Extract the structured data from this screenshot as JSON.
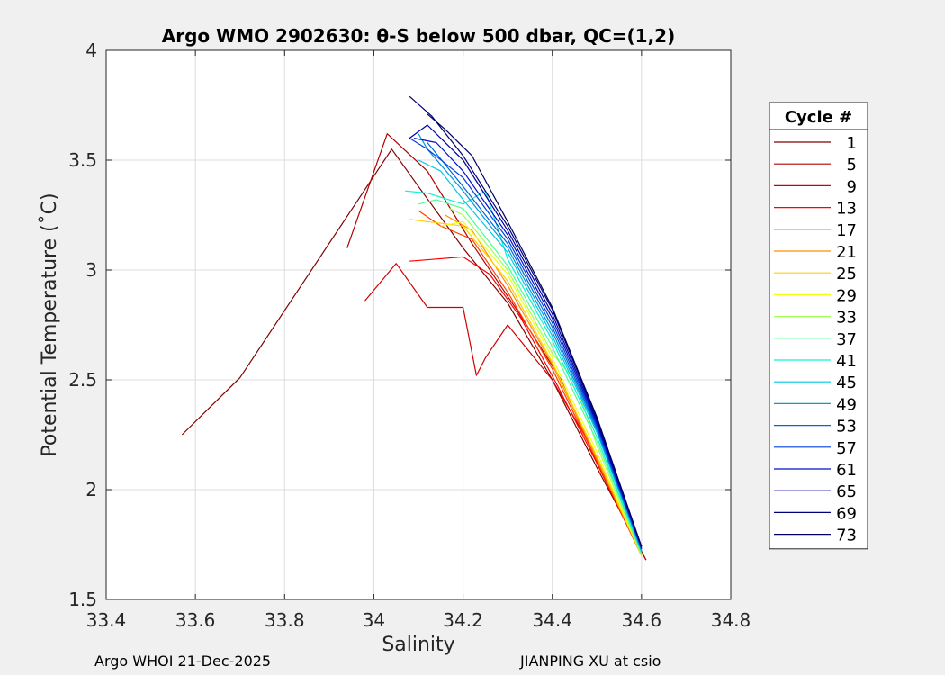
{
  "chart_data": {
    "type": "line",
    "title": "Argo WMO 2902630: θ-S below 500 dbar,  QC=(1,2)",
    "xlabel": "Salinity",
    "ylabel": "Potential Temperature (˚C)",
    "xlim": [
      33.4,
      34.8
    ],
    "ylim": [
      1.5,
      4.0
    ],
    "xticks": [
      "33.4",
      "33.6",
      "33.8",
      "34",
      "34.2",
      "34.4",
      "34.6",
      "34.8"
    ],
    "yticks": [
      "1.5",
      "2",
      "2.5",
      "3",
      "3.5",
      "4"
    ],
    "grid": true,
    "legend_title": "Cycle #",
    "legend_position": "right",
    "series": [
      {
        "name": "1",
        "color": "#800000",
        "x": [
          34.61,
          34.5,
          34.4,
          34.3,
          34.2,
          34.1,
          34.04,
          33.7,
          33.57
        ],
        "y": [
          1.68,
          2.1,
          2.5,
          2.85,
          3.1,
          3.38,
          3.55,
          2.51,
          2.25
        ]
      },
      {
        "name": "5",
        "color": "#b00000",
        "x": [
          34.61,
          34.5,
          34.42,
          34.32,
          34.22,
          34.12,
          34.03,
          33.94
        ],
        "y": [
          1.68,
          2.12,
          2.5,
          2.82,
          3.12,
          3.45,
          3.62,
          3.1
        ]
      },
      {
        "name": "9",
        "color": "#d00000",
        "x": [
          34.6,
          34.5,
          34.4,
          34.3,
          34.25,
          34.23,
          34.2,
          34.12,
          34.05,
          33.98
        ],
        "y": [
          1.7,
          2.15,
          2.5,
          2.75,
          2.6,
          2.52,
          2.83,
          2.83,
          3.03,
          2.86
        ]
      },
      {
        "name": "13",
        "color": "#ff0000",
        "x": [
          34.6,
          34.5,
          34.41,
          34.33,
          34.26,
          34.2,
          34.14,
          34.08
        ],
        "y": [
          1.7,
          2.12,
          2.48,
          2.78,
          2.98,
          3.06,
          3.05,
          3.04
        ]
      },
      {
        "name": "17",
        "color": "#ff4000",
        "x": [
          34.6,
          34.5,
          34.4,
          34.3,
          34.22,
          34.15,
          34.1
        ],
        "y": [
          1.7,
          2.13,
          2.55,
          2.9,
          3.14,
          3.2,
          3.27
        ]
      },
      {
        "name": "21",
        "color": "#ff9000",
        "x": [
          34.6,
          34.5,
          34.4,
          34.3,
          34.22,
          34.16
        ],
        "y": [
          1.7,
          2.14,
          2.57,
          2.93,
          3.18,
          3.25
        ]
      },
      {
        "name": "25",
        "color": "#ffd000",
        "x": [
          34.6,
          34.5,
          34.4,
          34.3,
          34.2,
          34.12,
          34.08
        ],
        "y": [
          1.7,
          2.15,
          2.58,
          2.95,
          3.2,
          3.22,
          3.23
        ]
      },
      {
        "name": "29",
        "color": "#f0ff10",
        "x": [
          34.6,
          34.5,
          34.4,
          34.3,
          34.2,
          34.15
        ],
        "y": [
          1.7,
          2.17,
          2.6,
          2.98,
          3.22,
          3.2
        ]
      },
      {
        "name": "33",
        "color": "#a0ff50",
        "x": [
          34.6,
          34.5,
          34.45,
          34.4,
          34.3,
          34.2,
          34.17
        ],
        "y": [
          1.7,
          2.2,
          2.5,
          2.62,
          3.0,
          3.25,
          3.28
        ]
      },
      {
        "name": "37",
        "color": "#50ff90",
        "x": [
          34.6,
          34.5,
          34.4,
          34.3,
          34.2,
          34.14,
          34.1
        ],
        "y": [
          1.71,
          2.22,
          2.65,
          3.02,
          3.28,
          3.32,
          3.3
        ]
      },
      {
        "name": "41",
        "color": "#10f0d0",
        "x": [
          34.6,
          34.5,
          34.4,
          34.3,
          34.25,
          34.2,
          34.12,
          34.07
        ],
        "y": [
          1.71,
          2.24,
          2.68,
          3.05,
          3.36,
          3.3,
          3.35,
          3.36
        ]
      },
      {
        "name": "45",
        "color": "#00c8e8",
        "x": [
          34.6,
          34.5,
          34.4,
          34.3,
          34.2,
          34.15,
          34.1
        ],
        "y": [
          1.72,
          2.26,
          2.7,
          3.08,
          3.32,
          3.45,
          3.5
        ]
      },
      {
        "name": "49",
        "color": "#0098e0",
        "x": [
          34.6,
          34.5,
          34.4,
          34.3,
          34.2,
          34.12,
          34.1
        ],
        "y": [
          1.72,
          2.27,
          2.72,
          3.1,
          3.36,
          3.55,
          3.62
        ]
      },
      {
        "name": "53",
        "color": "#0068d8",
        "x": [
          34.6,
          34.5,
          34.4,
          34.3,
          34.2,
          34.12
        ],
        "y": [
          1.73,
          2.28,
          2.74,
          3.12,
          3.38,
          3.58
        ]
      },
      {
        "name": "57",
        "color": "#0040e0",
        "x": [
          34.6,
          34.5,
          34.4,
          34.3,
          34.2,
          34.12,
          34.08
        ],
        "y": [
          1.73,
          2.29,
          2.76,
          3.14,
          3.42,
          3.55,
          3.6
        ]
      },
      {
        "name": "61",
        "color": "#0010c8",
        "x": [
          34.6,
          34.5,
          34.4,
          34.3,
          34.2,
          34.14,
          34.09
        ],
        "y": [
          1.73,
          2.3,
          2.78,
          3.16,
          3.45,
          3.58,
          3.6
        ]
      },
      {
        "name": "65",
        "color": "#0000a0",
        "x": [
          34.6,
          34.5,
          34.4,
          34.3,
          34.2,
          34.12,
          34.08
        ],
        "y": [
          1.74,
          2.31,
          2.8,
          3.18,
          3.5,
          3.66,
          3.6
        ]
      },
      {
        "name": "69",
        "color": "#00007a",
        "x": [
          34.6,
          34.5,
          34.4,
          34.3,
          34.2,
          34.13,
          34.08
        ],
        "y": [
          1.74,
          2.32,
          2.82,
          3.2,
          3.52,
          3.7,
          3.79
        ]
      },
      {
        "name": "73",
        "color": "#000060",
        "x": [
          34.6,
          34.5,
          34.4,
          34.3,
          34.22,
          34.16,
          34.12
        ],
        "y": [
          1.74,
          2.33,
          2.83,
          3.22,
          3.52,
          3.64,
          3.71
        ]
      }
    ]
  },
  "footer": {
    "left": "Argo WHOI 21-Dec-2025",
    "right": "JIANPING XU at csio"
  }
}
